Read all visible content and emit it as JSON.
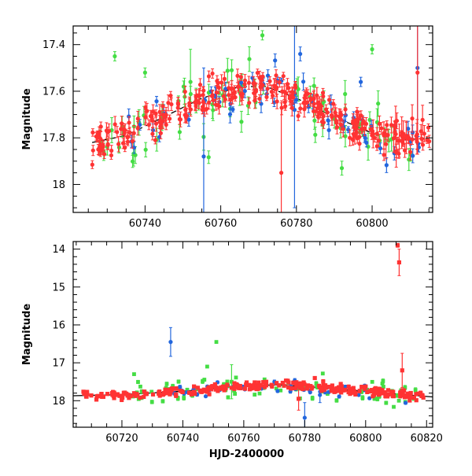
{
  "chart_data": [
    {
      "type": "scatter",
      "panel": "top",
      "title": "",
      "xlabel": "",
      "ylabel": "Magnitude",
      "xlim": [
        60721,
        60816
      ],
      "ylim": [
        18.12,
        17.32
      ],
      "y_inverted": true,
      "xticks": [
        60740,
        60760,
        60780,
        60800
      ],
      "yticks": [
        17.4,
        17.6,
        17.8,
        18
      ],
      "ytick_labels": [
        "17.4",
        "17.6",
        "17.8",
        "18"
      ],
      "series": [
        {
          "color": "#ff3333",
          "x": [],
          "y": []
        },
        {
          "color": "#44dd44",
          "x": [],
          "y": []
        },
        {
          "color": "#2266dd",
          "x": [],
          "y": []
        }
      ],
      "model_line": {
        "style": "dashed",
        "x": [
          60726,
          60735,
          60745,
          60755,
          60765,
          60772,
          60780,
          60790,
          60800,
          60808,
          60815
        ],
        "y": [
          17.82,
          17.79,
          17.71,
          17.63,
          17.58,
          17.58,
          17.63,
          17.71,
          17.78,
          17.81,
          17.8
        ]
      }
    },
    {
      "type": "scatter",
      "panel": "bottom",
      "title": "",
      "xlabel": "HJD-2400000",
      "ylabel": "Magnitude",
      "xlim": [
        60704,
        60822
      ],
      "ylim": [
        18.7,
        13.8
      ],
      "y_inverted": true,
      "xticks": [
        60720,
        60740,
        60760,
        60780,
        60800,
        60820
      ],
      "yticks": [
        14,
        15,
        16,
        17,
        18
      ],
      "ytick_labels": [
        "14",
        "15",
        "16",
        "17",
        "18"
      ],
      "series": [
        {
          "color": "#ff3333",
          "x": [],
          "y": []
        },
        {
          "color": "#44dd44",
          "x": [],
          "y": []
        },
        {
          "color": "#2266dd",
          "x": [],
          "y": []
        }
      ],
      "model_line": {
        "style": "solid",
        "x": [
          60704,
          60720,
          60740,
          60760,
          60770,
          60780,
          60800,
          60822
        ],
        "y": [
          17.87,
          17.84,
          17.75,
          17.62,
          17.58,
          17.62,
          17.76,
          17.9
        ]
      }
    }
  ]
}
